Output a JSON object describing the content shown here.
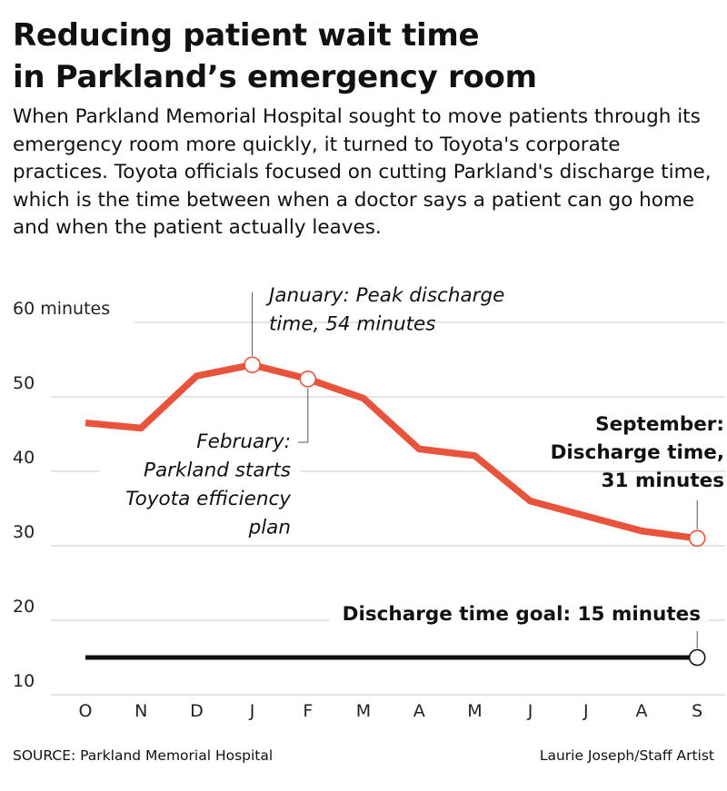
{
  "header": {
    "title_line1": "Reducing patient wait time",
    "title_line2": "in Parkland’s emergency room",
    "subtitle": "When Parkland Memorial Hospital sought to move patients through its emergency room more quickly, it turned to Toyota's corporate practices. Toyota officials focused on cutting Parkland's discharge time, which is the time between when a doctor says a patient can go home and when the patient actually leaves."
  },
  "chart_data": {
    "type": "line",
    "categories": [
      "O",
      "N",
      "D",
      "J",
      "F",
      "M",
      "A",
      "M",
      "J",
      "J",
      "A",
      "S"
    ],
    "series": [
      {
        "values": [
          46.5,
          45.8,
          52.8,
          54.3,
          52.4,
          49.8,
          43,
          42.1,
          36,
          34,
          32,
          31
        ],
        "color": "#e8533b"
      },
      {
        "values": [
          15,
          15,
          15,
          15,
          15,
          15,
          15,
          15,
          15,
          15,
          15,
          15
        ],
        "color": "#111111"
      }
    ],
    "ylim": [
      10,
      60
    ],
    "yticks": [
      {
        "value": 60,
        "label": "60 minutes"
      },
      {
        "value": 50,
        "label": "50"
      },
      {
        "value": 40,
        "label": "40"
      },
      {
        "value": 30,
        "label": "30"
      },
      {
        "value": 20,
        "label": "20"
      },
      {
        "value": 10,
        "label": "10"
      }
    ],
    "grid": true,
    "annotations": [
      {
        "id": "january",
        "lines": [
          "January: Peak discharge",
          "time, 54 minutes"
        ],
        "category_index": 3,
        "value": 54.3,
        "style": "italic"
      },
      {
        "id": "february",
        "lines": [
          "February:",
          "Parkland starts",
          "Toyota efficiency",
          "plan"
        ],
        "category_index": 4,
        "value": 52.4,
        "style": "italic"
      },
      {
        "id": "september",
        "lines": [
          "September:",
          "Discharge time,",
          "31 minutes"
        ],
        "category_index": 11,
        "value": 31,
        "style": "bold"
      },
      {
        "id": "goal",
        "lines": [
          "Discharge time goal: 15 minutes"
        ],
        "category_index": 11,
        "value": 15,
        "style": "bold"
      }
    ]
  },
  "footer": {
    "source": "SOURCE: Parkland Memorial Hospital",
    "credit": "Laurie Joseph/Staff Artist"
  }
}
